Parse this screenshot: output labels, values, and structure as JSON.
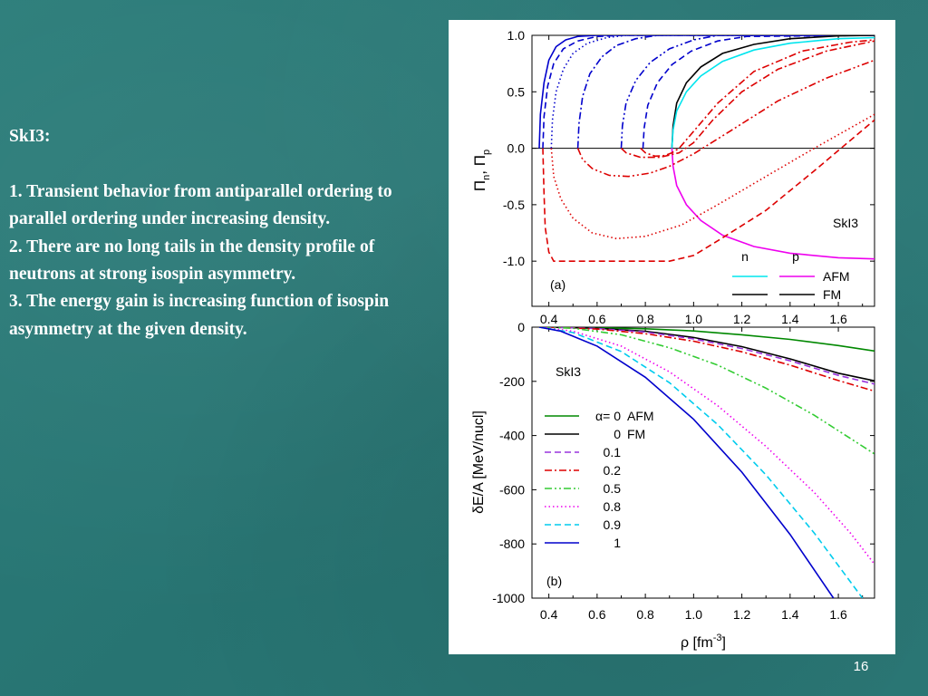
{
  "slide": {
    "heading": "SkI3:",
    "points": [
      "1. Transient behavior from antiparallel ordering to parallel ordering under increasing density.",
      "2. There are no long tails in the density profile of neutrons at strong isospin asymmetry.",
      "3. The energy gain is increasing function of isospin asymmetry at the given density."
    ],
    "page_number": "16"
  },
  "chart_data": [
    {
      "type": "line",
      "panel_label": "(a)",
      "model_label": "SkI3",
      "ylabel_parts": [
        "Π",
        "n",
        ", Π",
        "p"
      ],
      "x_ticks": [
        "0.4",
        "0.6",
        "0.8",
        "1.0",
        "1.2",
        "1.4",
        "1.6"
      ],
      "y_ticks": [
        "1.0",
        "0.5",
        "0.0",
        "-0.5",
        "-1.0"
      ],
      "xlim": [
        0.33,
        1.75
      ],
      "ylim": [
        -1.4,
        1.0
      ],
      "legend": {
        "header_n": "n",
        "header_p": "p",
        "rows": [
          {
            "label": "AFM",
            "n_color": "#00e5ee",
            "p_color": "#ee00ee"
          },
          {
            "label": "FM",
            "n_color": "#000000",
            "p_color": "#000000"
          }
        ]
      },
      "series": [
        {
          "species": "n",
          "alpha": 1,
          "color": "#0000cc",
          "dash": "solid",
          "x": [
            0.36,
            0.365,
            0.38,
            0.4,
            0.43,
            0.47,
            0.52,
            0.6,
            1.75
          ],
          "y": [
            0.0,
            0.3,
            0.58,
            0.78,
            0.9,
            0.96,
            0.99,
            1.0,
            1.0
          ]
        },
        {
          "species": "n",
          "alpha": 0.9,
          "color": "#0000cc",
          "dash": "dash",
          "x": [
            0.375,
            0.38,
            0.395,
            0.42,
            0.46,
            0.52,
            0.6,
            0.7,
            1.75
          ],
          "y": [
            0.0,
            0.28,
            0.55,
            0.75,
            0.88,
            0.95,
            0.99,
            1.0,
            1.0
          ]
        },
        {
          "species": "n",
          "alpha": 0.8,
          "color": "#0000cc",
          "dash": "dot",
          "x": [
            0.41,
            0.415,
            0.43,
            0.46,
            0.5,
            0.56,
            0.64,
            0.72,
            1.75
          ],
          "y": [
            0.0,
            0.25,
            0.5,
            0.7,
            0.84,
            0.93,
            0.98,
            1.0,
            1.0
          ]
        },
        {
          "species": "n",
          "alpha": 0.5,
          "color": "#0000cc",
          "dash": "dashdot",
          "x": [
            0.52,
            0.525,
            0.54,
            0.57,
            0.62,
            0.68,
            0.76,
            0.85,
            1.75
          ],
          "y": [
            0.0,
            0.22,
            0.46,
            0.66,
            0.81,
            0.91,
            0.97,
            1.0,
            1.0
          ]
        },
        {
          "species": "n",
          "alpha": 0.2,
          "color": "#0000cc",
          "dash": "dashdotdot",
          "x": [
            0.7,
            0.705,
            0.72,
            0.76,
            0.82,
            0.9,
            1.0,
            1.1,
            1.75
          ],
          "y": [
            0.0,
            0.2,
            0.4,
            0.6,
            0.76,
            0.88,
            0.96,
            1.0,
            1.0
          ]
        },
        {
          "species": "n",
          "alpha": 0.1,
          "color": "#0000cc",
          "dash": "dash",
          "x": [
            0.79,
            0.795,
            0.81,
            0.85,
            0.91,
            0.99,
            1.1,
            1.22,
            1.75
          ],
          "y": [
            0.0,
            0.18,
            0.38,
            0.58,
            0.74,
            0.86,
            0.95,
            0.99,
            1.0
          ]
        },
        {
          "species": "n",
          "alpha": 0,
          "order": "FM",
          "color": "#000000",
          "dash": "solid",
          "x": [
            0.91,
            0.915,
            0.93,
            0.97,
            1.03,
            1.12,
            1.25,
            1.4,
            1.6,
            1.75
          ],
          "y": [
            0.0,
            0.2,
            0.4,
            0.58,
            0.72,
            0.84,
            0.92,
            0.97,
            0.995,
            1.0
          ]
        },
        {
          "species": "n",
          "alpha": 0,
          "order": "AFM",
          "color": "#00e5ee",
          "dash": "solid",
          "x": [
            0.91,
            0.915,
            0.93,
            0.97,
            1.03,
            1.12,
            1.25,
            1.4,
            1.6,
            1.75
          ],
          "y": [
            0.0,
            0.16,
            0.33,
            0.5,
            0.64,
            0.77,
            0.87,
            0.93,
            0.97,
            0.98
          ]
        },
        {
          "species": "p",
          "alpha": 0,
          "order": "AFM",
          "color": "#ee00ee",
          "dash": "solid",
          "x": [
            0.91,
            0.915,
            0.93,
            0.97,
            1.03,
            1.12,
            1.25,
            1.4,
            1.6,
            1.75
          ],
          "y": [
            0.0,
            -0.16,
            -0.33,
            -0.5,
            -0.64,
            -0.77,
            -0.87,
            -0.93,
            -0.97,
            -0.98
          ]
        },
        {
          "species": "p",
          "alpha": 0.1,
          "color": "#dd0000",
          "dash": "dashdot",
          "x": [
            0.78,
            0.8,
            0.84,
            0.88,
            0.91,
            0.94,
            1.0,
            1.1,
            1.25,
            1.45,
            1.65,
            1.75
          ],
          "y": [
            0.0,
            -0.04,
            -0.07,
            -0.065,
            -0.04,
            0.0,
            0.15,
            0.4,
            0.68,
            0.86,
            0.94,
            0.96
          ]
        },
        {
          "species": "p",
          "alpha": 0.2,
          "color": "#dd0000",
          "dash": "dashdot",
          "x": [
            0.7,
            0.72,
            0.78,
            0.86,
            0.94,
            1.0,
            1.08,
            1.2,
            1.35,
            1.55,
            1.75
          ],
          "y": [
            0.0,
            -0.04,
            -0.08,
            -0.08,
            -0.04,
            0.05,
            0.25,
            0.5,
            0.7,
            0.86,
            0.95
          ]
        },
        {
          "species": "p",
          "alpha": 0.5,
          "color": "#dd0000",
          "dash": "dashdotdot",
          "x": [
            0.52,
            0.54,
            0.58,
            0.65,
            0.73,
            0.82,
            0.9,
            1.0,
            1.15,
            1.35,
            1.55,
            1.75
          ],
          "y": [
            0.0,
            -0.1,
            -0.18,
            -0.24,
            -0.25,
            -0.22,
            -0.16,
            -0.05,
            0.15,
            0.42,
            0.62,
            0.78
          ]
        },
        {
          "species": "p",
          "alpha": 0.8,
          "color": "#dd0000",
          "dash": "dot",
          "x": [
            0.41,
            0.42,
            0.45,
            0.5,
            0.58,
            0.68,
            0.8,
            0.95,
            1.1,
            1.3,
            1.5,
            1.75
          ],
          "y": [
            0.0,
            -0.25,
            -0.45,
            -0.62,
            -0.75,
            -0.8,
            -0.78,
            -0.68,
            -0.5,
            -0.25,
            0.0,
            0.3
          ]
        },
        {
          "species": "p",
          "alpha": 0.9,
          "color": "#dd0000",
          "dash": "dash",
          "x": [
            0.375,
            0.38,
            0.385,
            0.4,
            0.42,
            0.5,
            0.7,
            0.9,
            1.0,
            1.1,
            1.3,
            1.5,
            1.75
          ],
          "y": [
            0.0,
            -0.4,
            -0.7,
            -0.92,
            -1.0,
            -1.0,
            -1.0,
            -1.0,
            -0.95,
            -0.82,
            -0.55,
            -0.2,
            0.25
          ]
        }
      ]
    },
    {
      "type": "line",
      "panel_label": "(b)",
      "model_label": "SkI3",
      "xlabel_base": "ρ [fm",
      "xlabel_exp": "-3",
      "xlabel_end": "]",
      "ylabel": "δE/A [MeV/nucl]",
      "x_ticks": [
        "0.4",
        "0.6",
        "0.8",
        "1.0",
        "1.2",
        "1.4",
        "1.6"
      ],
      "y_ticks": [
        "0",
        "-200",
        "-400",
        "-600",
        "-800",
        "-1000"
      ],
      "xlim": [
        0.33,
        1.75
      ],
      "ylim": [
        -1000,
        0
      ],
      "legend": [
        {
          "alpha_label": "α= 0",
          "order_label": "AFM",
          "color": "#008800",
          "dash": "solid"
        },
        {
          "alpha_label": "0",
          "order_label": "FM",
          "color": "#000000",
          "dash": "solid"
        },
        {
          "alpha_label": "0.1",
          "order_label": "",
          "color": "#9933dd",
          "dash": "dash"
        },
        {
          "alpha_label": "0.2",
          "order_label": "",
          "color": "#dd0000",
          "dash": "dashdot"
        },
        {
          "alpha_label": "0.5",
          "order_label": "",
          "color": "#33cc33",
          "dash": "dashdotdot"
        },
        {
          "alpha_label": "0.8",
          "order_label": "",
          "color": "#ee00ee",
          "dash": "dot"
        },
        {
          "alpha_label": "0.9",
          "order_label": "",
          "color": "#00ccee",
          "dash": "dash"
        },
        {
          "alpha_label": "1",
          "order_label": "",
          "color": "#0000cc",
          "dash": "solid"
        }
      ],
      "series": [
        {
          "alpha": 0,
          "order": "AFM",
          "color": "#008800",
          "dash": "solid",
          "x": [
            0.4,
            0.6,
            0.8,
            1.0,
            1.2,
            1.4,
            1.6,
            1.75
          ],
          "y": [
            0,
            -2,
            -6,
            -14,
            -28,
            -45,
            -68,
            -88
          ]
        },
        {
          "alpha": 0,
          "order": "FM",
          "color": "#000000",
          "dash": "solid",
          "x": [
            0.4,
            0.6,
            0.8,
            1.0,
            1.2,
            1.4,
            1.6,
            1.75
          ],
          "y": [
            0,
            -4,
            -15,
            -38,
            -72,
            -117,
            -170,
            -198
          ]
        },
        {
          "alpha": 0.1,
          "color": "#9933dd",
          "dash": "dash",
          "x": [
            0.4,
            0.6,
            0.8,
            1.0,
            1.2,
            1.4,
            1.6,
            1.75
          ],
          "y": [
            0,
            -5,
            -18,
            -43,
            -79,
            -124,
            -178,
            -210
          ]
        },
        {
          "alpha": 0.2,
          "color": "#dd0000",
          "dash": "dashdot",
          "x": [
            0.4,
            0.6,
            0.8,
            1.0,
            1.2,
            1.4,
            1.6,
            1.75
          ],
          "y": [
            0,
            -7,
            -24,
            -52,
            -91,
            -140,
            -197,
            -236
          ]
        },
        {
          "alpha": 0.5,
          "color": "#33cc33",
          "dash": "dashdotdot",
          "x": [
            0.38,
            0.5,
            0.7,
            0.9,
            1.1,
            1.3,
            1.5,
            1.75
          ],
          "y": [
            0,
            -4,
            -28,
            -76,
            -140,
            -225,
            -325,
            -468
          ]
        },
        {
          "alpha": 0.8,
          "color": "#ee00ee",
          "dash": "dot",
          "x": [
            0.37,
            0.5,
            0.7,
            0.9,
            1.1,
            1.3,
            1.5,
            1.65,
            1.75
          ],
          "y": [
            0,
            -15,
            -70,
            -165,
            -290,
            -440,
            -610,
            -760,
            -875
          ]
        },
        {
          "alpha": 0.9,
          "color": "#00ccee",
          "dash": "dash",
          "x": [
            0.36,
            0.5,
            0.7,
            0.9,
            1.1,
            1.3,
            1.5,
            1.7
          ],
          "y": [
            0,
            -20,
            -90,
            -205,
            -360,
            -545,
            -760,
            -1000
          ]
        },
        {
          "alpha": 1,
          "color": "#0000cc",
          "dash": "solid",
          "x": [
            0.36,
            0.45,
            0.6,
            0.8,
            1.0,
            1.2,
            1.4,
            1.58
          ],
          "y": [
            0,
            -15,
            -70,
            -185,
            -340,
            -535,
            -765,
            -1000
          ]
        }
      ]
    }
  ]
}
